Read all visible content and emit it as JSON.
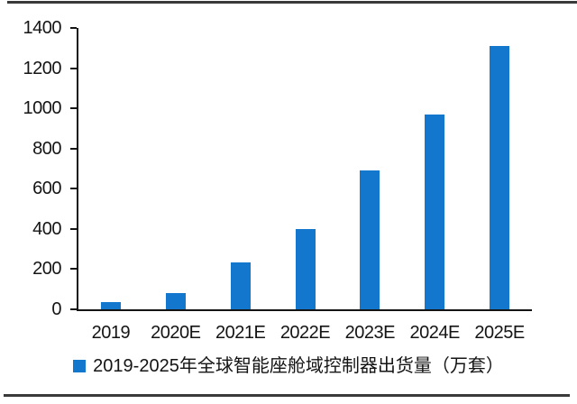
{
  "chart_data": {
    "type": "bar",
    "title": "",
    "xlabel": "",
    "ylabel": "",
    "categories": [
      "2019",
      "2020E",
      "2021E",
      "2022E",
      "2023E",
      "2024E",
      "2025E"
    ],
    "values": [
      35,
      80,
      235,
      400,
      690,
      970,
      1310
    ],
    "ylim": [
      0,
      1400
    ],
    "yticks": [
      0,
      200,
      400,
      600,
      800,
      1000,
      1200,
      1400
    ],
    "grid": false,
    "legend_position": "bottom",
    "legend_label": "2019-2025年全球智能座舱域控制器出货量（万套）",
    "bar_color": "#1477ce"
  },
  "colors": {
    "bar": "#1477ce",
    "legend_marker": "#1477ce",
    "axis": "#141414",
    "text": "#141414",
    "background": "#ffffff",
    "horizontal_rule": "#3a3a3a"
  }
}
